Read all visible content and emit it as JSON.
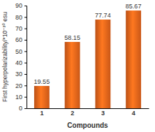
{
  "chart_data": {
    "type": "bar",
    "x_label": "Compounds",
    "y_label": "First hyperpolarizability/*10⁻³⁰ esu",
    "categories": [
      "1",
      "2",
      "3",
      "4"
    ],
    "values": [
      19.55,
      58.15,
      77.74,
      85.67
    ],
    "color": "#e8641b",
    "ylim": [
      0,
      90
    ],
    "yticks": [
      0,
      10,
      20,
      30,
      40,
      50,
      60,
      70,
      80,
      90
    ],
    "data_labels": true,
    "grid": false
  }
}
